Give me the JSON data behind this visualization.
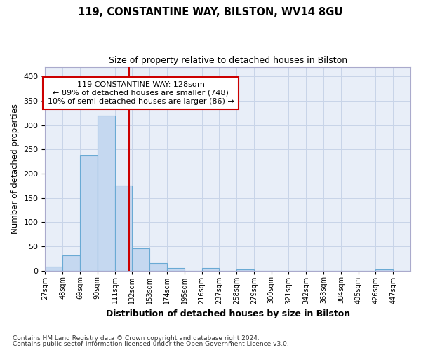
{
  "title1": "119, CONSTANTINE WAY, BILSTON, WV14 8GU",
  "title2": "Size of property relative to detached houses in Bilston",
  "xlabel": "Distribution of detached houses by size in Bilston",
  "ylabel": "Number of detached properties",
  "bin_labels": [
    "27sqm",
    "48sqm",
    "69sqm",
    "90sqm",
    "111sqm",
    "132sqm",
    "153sqm",
    "174sqm",
    "195sqm",
    "216sqm",
    "237sqm",
    "258sqm",
    "279sqm",
    "300sqm",
    "321sqm",
    "342sqm",
    "363sqm",
    "384sqm",
    "405sqm",
    "426sqm",
    "447sqm"
  ],
  "bin_edges": [
    27,
    48,
    69,
    90,
    111,
    132,
    153,
    174,
    195,
    216,
    237,
    258,
    279,
    300,
    321,
    342,
    363,
    384,
    405,
    426,
    447,
    468
  ],
  "bar_heights": [
    8,
    31,
    237,
    320,
    175,
    45,
    15,
    5,
    0,
    5,
    0,
    3,
    0,
    0,
    0,
    0,
    0,
    0,
    0,
    3,
    0
  ],
  "bar_color": "#c5d8f0",
  "bar_edge_color": "#6aaad4",
  "property_size": 128,
  "vline_color": "#cc0000",
  "annotation_line1": "119 CONSTANTINE WAY: 128sqm",
  "annotation_line2": "← 89% of detached houses are smaller (748)",
  "annotation_line3": "10% of semi-detached houses are larger (86) →",
  "annotation_box_color": "#ffffff",
  "annotation_box_edge": "#cc0000",
  "ylim": [
    0,
    420
  ],
  "yticks": [
    0,
    50,
    100,
    150,
    200,
    250,
    300,
    350,
    400
  ],
  "grid_color": "#c8d4e8",
  "plot_bg_color": "#e8eef8",
  "fig_bg_color": "#ffffff",
  "footnote1": "Contains HM Land Registry data © Crown copyright and database right 2024.",
  "footnote2": "Contains public sector information licensed under the Open Government Licence v3.0."
}
